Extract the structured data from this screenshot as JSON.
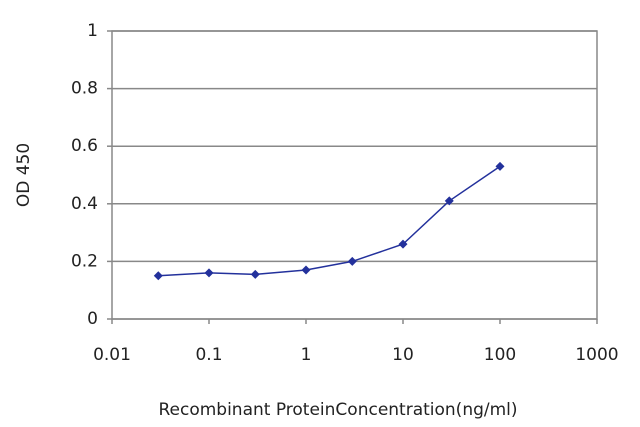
{
  "chart_data": {
    "type": "line",
    "x_label": "Recombinant ProteinConcentration(ng/ml)",
    "y_label": "OD 450",
    "x": [
      0.03,
      0.1,
      0.3,
      1,
      3,
      10,
      30,
      100
    ],
    "values": [
      0.15,
      0.16,
      0.155,
      0.17,
      0.2,
      0.26,
      0.41,
      0.53
    ],
    "color": "#23319c",
    "xscale": "log",
    "xlim": [
      0.01,
      1000
    ],
    "xticks": [
      0.01,
      0.1,
      1,
      10,
      100,
      1000
    ],
    "ylim": [
      0,
      1
    ],
    "yticks": [
      0,
      0.2,
      0.4,
      0.6,
      0.8,
      1
    ],
    "grid": true
  }
}
